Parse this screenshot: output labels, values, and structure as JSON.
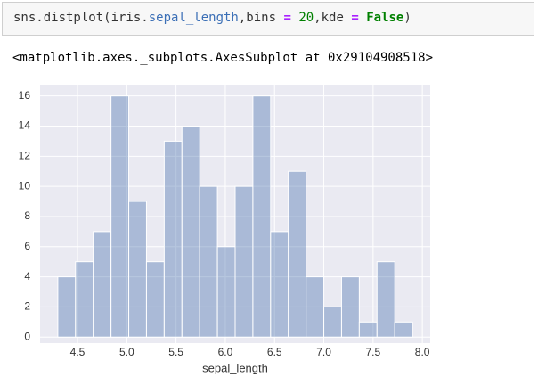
{
  "code": {
    "tokens": [
      "sns.distplot(iris.",
      "sepal_length",
      ",bins ",
      "=",
      " 20",
      ",kde ",
      "=",
      " False",
      ")"
    ]
  },
  "output": "<matplotlib.axes._subplots.AxesSubplot at 0x29104908518>",
  "chart_data": {
    "type": "histogram",
    "xlabel": "sepal_length",
    "bins": [
      4.3,
      4.48,
      4.66,
      4.84,
      5.02,
      5.2,
      5.38,
      5.56,
      5.74,
      5.92,
      6.1,
      6.28,
      6.46,
      6.64,
      6.82,
      7.0,
      7.18,
      7.36,
      7.54,
      7.72,
      7.9
    ],
    "values": [
      4,
      5,
      7,
      16,
      9,
      5,
      13,
      14,
      10,
      6,
      10,
      16,
      7,
      11,
      4,
      2,
      4,
      1,
      5,
      1
    ],
    "color": "#4c72b0",
    "xlim": [
      4.12,
      8.08
    ],
    "xticks": [
      4.5,
      {
        "value": 5.0,
        "label": "5.0"
      },
      5.5,
      {
        "value": 6.0,
        "label": "6.0"
      },
      6.5,
      {
        "value": 7.0,
        "label": "7.0"
      },
      7.5,
      {
        "value": 8.0,
        "label": "8.0"
      }
    ],
    "ylim": [
      -0.4,
      16.75
    ],
    "yticks": [
      0,
      2,
      4,
      6,
      8,
      10,
      12,
      14,
      16
    ],
    "grid": true
  }
}
